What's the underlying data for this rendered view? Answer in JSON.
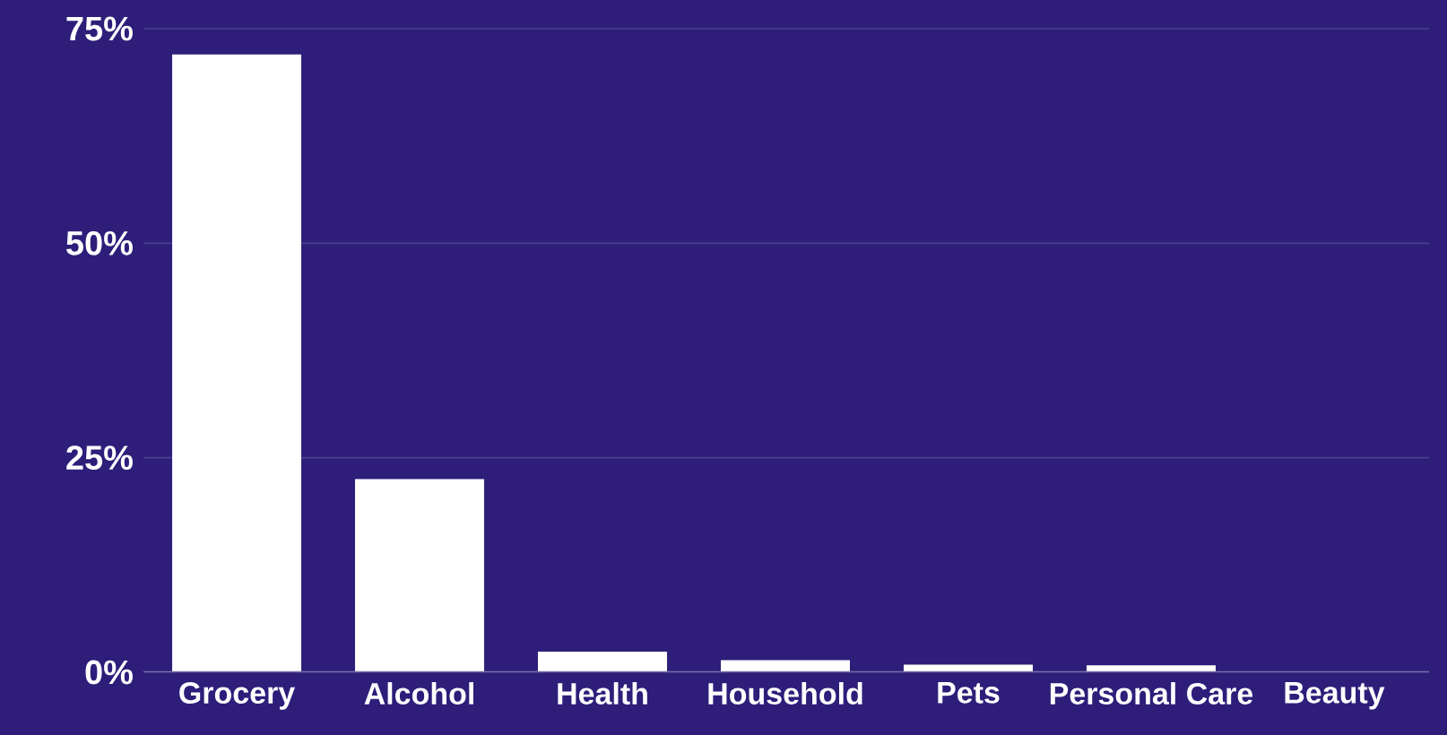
{
  "chart_data": {
    "type": "bar",
    "categories": [
      "Grocery",
      "Alcohol",
      "Health",
      "Household",
      "Pets",
      "Personal Care",
      "Beauty"
    ],
    "values": [
      72,
      22.5,
      2.4,
      1.4,
      0.9,
      0.8,
      0
    ],
    "color": "#ffffff",
    "ylim": [
      0,
      75
    ],
    "yticks": [
      {
        "value": 0,
        "label": "0%"
      },
      {
        "value": 25,
        "label": "25%"
      },
      {
        "value": 50,
        "label": "50%"
      },
      {
        "value": 75,
        "label": "75%"
      }
    ],
    "grid": "y"
  }
}
